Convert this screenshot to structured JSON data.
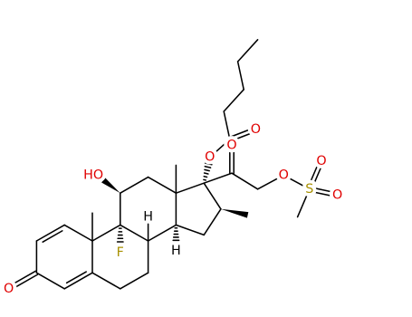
{
  "atom_labels": [
    "O",
    "HO",
    "F",
    "H",
    "H",
    "O",
    "O",
    "O",
    "O",
    "S",
    "O",
    "O"
  ]
}
